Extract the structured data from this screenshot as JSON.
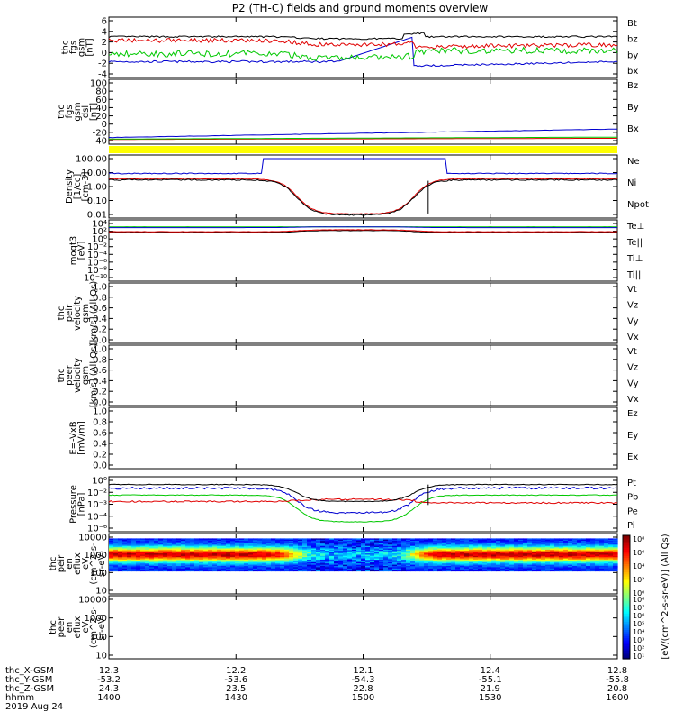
{
  "title": "P2 (TH-C) fields and ground moments overview",
  "colors": {
    "black": "#000000",
    "red": "#e00000",
    "green": "#00c800",
    "blue": "#0000d0",
    "yellow": "#ffff00"
  },
  "chart_data": [
    {
      "type": "line",
      "panel": "fgs_gsm",
      "ylabel_lines": [
        "thc",
        "fgs",
        "gsm",
        "[nT]"
      ],
      "yticks": [
        "6",
        "4",
        "2",
        "0",
        "-2",
        "-4"
      ],
      "ylim": [
        -4,
        6
      ],
      "series": [
        {
          "name": "Bt",
          "color": "black"
        },
        {
          "name": "bz",
          "color": "red"
        },
        {
          "name": "by",
          "color": "green"
        },
        {
          "name": "bx",
          "color": "blue"
        }
      ]
    },
    {
      "type": "line",
      "panel": "fgs_gsm_dsl",
      "ylabel_lines": [
        "thc",
        "fgs",
        "gsm",
        "dsl",
        "[nT]"
      ],
      "yticks": [
        "100",
        "80",
        "60",
        "40",
        "20",
        "0",
        "-20",
        "-40"
      ],
      "ylim": [
        -50,
        100
      ],
      "series": [
        {
          "name": "Bz",
          "color": "red"
        },
        {
          "name": "By",
          "color": "green"
        },
        {
          "name": "Bx",
          "color": "blue"
        }
      ]
    },
    {
      "type": "line",
      "panel": "density",
      "scale": "log",
      "ylabel_lines": [
        "Density",
        "[1/cc]",
        "[cm-3]"
      ],
      "yticks": [
        "100.00",
        "10.00",
        "1.00",
        "0.10",
        "0.01"
      ],
      "ylim": [
        0.005,
        200
      ],
      "series": [
        {
          "name": "Ne",
          "color": "red"
        },
        {
          "name": "Ni",
          "color": "black"
        },
        {
          "name": "Npot",
          "color": "blue"
        }
      ]
    },
    {
      "type": "line",
      "panel": "moms",
      "scale": "log",
      "ylabel_lines": [
        "moqt3",
        "[eV]"
      ],
      "yticks": [
        "10⁴",
        "10²",
        "10⁰",
        "10⁻²",
        "10⁻⁴",
        "10⁻⁶",
        "10⁻⁸",
        "10⁻¹⁰"
      ],
      "series": [
        {
          "name": "Te⊥",
          "color": "red"
        },
        {
          "name": "Te||",
          "color": "black"
        },
        {
          "name": "Ti⊥",
          "color": "blue"
        },
        {
          "name": "Ti||",
          "color": "green"
        }
      ]
    },
    {
      "type": "line",
      "panel": "peir_velocity",
      "ylabel_lines": [
        "thc",
        "peir",
        "velocity",
        "gsm",
        "[km/s] (All Qs)"
      ],
      "yticks": [
        "1.0",
        "0.8",
        "0.6",
        "0.4",
        "0.2",
        "0.0"
      ],
      "ylim": [
        0,
        1
      ],
      "series": [
        {
          "name": "Vt",
          "color": "black"
        },
        {
          "name": "Vz",
          "color": "red"
        },
        {
          "name": "Vy",
          "color": "green"
        },
        {
          "name": "Vx",
          "color": "blue"
        }
      ]
    },
    {
      "type": "line",
      "panel": "peer_velocity",
      "ylabel_lines": [
        "thc",
        "peer",
        "velocity",
        "gsm",
        "[km/s] (All Qs)"
      ],
      "yticks": [
        "1.0",
        "0.8",
        "0.6",
        "0.4",
        "0.2",
        "0.0"
      ],
      "ylim": [
        0,
        1
      ],
      "series": [
        {
          "name": "Vt",
          "color": "black"
        },
        {
          "name": "Vz",
          "color": "red"
        },
        {
          "name": "Vy",
          "color": "green"
        },
        {
          "name": "Vx",
          "color": "blue"
        }
      ]
    },
    {
      "type": "line",
      "panel": "e_field",
      "ylabel_lines": [
        "E=-VxB",
        "[mV/m]"
      ],
      "yticks": [
        "1.0",
        "0.8",
        "0.6",
        "0.4",
        "0.2",
        "0.0"
      ],
      "ylim": [
        0,
        1
      ],
      "series": [
        {
          "name": "Ez",
          "color": "red"
        },
        {
          "name": "Ey",
          "color": "green"
        },
        {
          "name": "Ex",
          "color": "blue"
        }
      ]
    },
    {
      "type": "line",
      "panel": "pressure",
      "scale": "log",
      "ylabel_lines": [
        "Pressure",
        "[nPa]"
      ],
      "yticks": [
        "10⁰",
        "10⁻²",
        "10⁻³",
        "10⁻⁴",
        "10⁻⁶"
      ],
      "series": [
        {
          "name": "Pt",
          "color": "black"
        },
        {
          "name": "Pb",
          "color": "red"
        },
        {
          "name": "Pe",
          "color": "green"
        },
        {
          "name": "Pi",
          "color": "blue"
        }
      ]
    },
    {
      "type": "heatmap",
      "panel": "peir_eflux",
      "ylabel_lines": [
        "thc",
        "peir",
        "en",
        "eflux",
        "eV",
        "(cm^2-s-",
        "sr-eV)"
      ],
      "yticks": [
        "10000",
        "1000",
        "100",
        "10"
      ]
    },
    {
      "type": "heatmap",
      "panel": "peer_eflux",
      "ylabel_lines": [
        "thc",
        "peer",
        "en",
        "eflux",
        "eV",
        "(cm^2-s-",
        "sr-eV)"
      ],
      "yticks": [
        "10000",
        "1000",
        "100",
        "10"
      ]
    }
  ],
  "colorbar": {
    "ticks": [
      "10⁸",
      "10⁶",
      "10⁴",
      "10²",
      "10⁰"
    ],
    "ticks2": [
      "10⁸",
      "10⁷",
      "10⁶",
      "10⁵",
      "10⁴",
      "10³",
      "10²",
      "10¹"
    ],
    "label": "[eV/(cm^2-s-sr-eV)] (All Qs)"
  },
  "xaxis": {
    "row_labels": [
      "thc_X-GSM",
      "thc_Y-GSM",
      "thc_Z-GSM",
      "hhmm"
    ],
    "date": "2019 Aug 24",
    "ticks": [
      {
        "x_gsm": "12.3",
        "y_gsm": "-53.2",
        "z_gsm": "24.3",
        "hhmm": "1400"
      },
      {
        "x_gsm": "12.2",
        "y_gsm": "-53.6",
        "z_gsm": "23.5",
        "hhmm": "1430"
      },
      {
        "x_gsm": "12.1",
        "y_gsm": "-54.3",
        "z_gsm": "22.8",
        "hhmm": "1500"
      },
      {
        "x_gsm": "12.4",
        "y_gsm": "-55.1",
        "z_gsm": "21.9",
        "hhmm": "1530"
      },
      {
        "x_gsm": "12.8",
        "y_gsm": "-55.8",
        "z_gsm": "20.8",
        "hhmm": "1600"
      }
    ]
  }
}
